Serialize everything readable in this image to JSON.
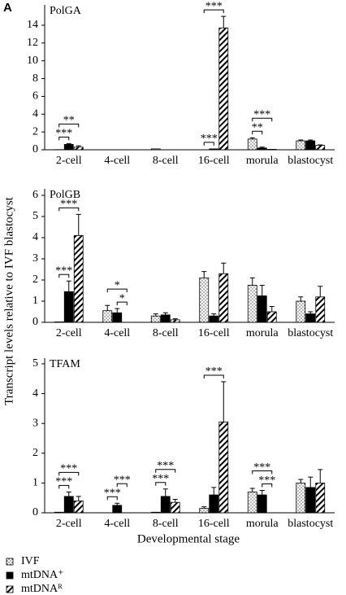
{
  "panel_label": "A",
  "y_label": "Transcript levels relative to IVF blastocyst",
  "x_label": "Developmental stage",
  "legend": [
    {
      "name": "IVF",
      "pattern": "dots"
    },
    {
      "name": "mtDNA⁺",
      "pattern": "solid"
    },
    {
      "name": "mtDNAᴿ",
      "pattern": "hatch"
    }
  ],
  "chart_data": [
    {
      "type": "bar",
      "title": "PolGA",
      "categories": [
        "2-cell",
        "4-cell",
        "8-cell",
        "16-cell",
        "morula",
        "blastocyst"
      ],
      "series": [
        {
          "values": [
            0.02,
            0,
            0.1,
            0,
            1.2,
            1.0
          ],
          "errors": [
            0,
            0,
            0,
            0,
            0.15,
            0.1
          ]
        },
        {
          "values": [
            0.6,
            0,
            0,
            0.1,
            0.2,
            1.0
          ],
          "errors": [
            0.1,
            0,
            0,
            0,
            0.1,
            0.1
          ]
        },
        {
          "values": [
            0.3,
            0,
            0,
            13.7,
            0.05,
            0.5
          ],
          "errors": [
            0.15,
            0,
            0,
            1.3,
            0,
            0.05
          ]
        }
      ],
      "ylim": [
        0,
        14
      ],
      "yticks": [
        0,
        2,
        4,
        6,
        8,
        10,
        12,
        14
      ],
      "annotations": [
        {
          "text": "***",
          "category": 0,
          "bars": [
            0,
            1
          ]
        },
        {
          "text": "**",
          "category": 0,
          "bars": [
            0,
            2
          ]
        },
        {
          "text": "***",
          "category": 3,
          "bars": [
            0,
            1
          ]
        },
        {
          "text": "***",
          "category": 3,
          "bars": [
            0,
            2
          ]
        },
        {
          "text": "**",
          "category": 4,
          "bars": [
            0,
            1
          ]
        },
        {
          "text": "***",
          "category": 4,
          "bars": [
            0,
            2
          ]
        }
      ]
    },
    {
      "type": "bar",
      "title": "PolGB",
      "categories": [
        "2-cell",
        "4-cell",
        "8-cell",
        "16-cell",
        "morula",
        "blastocyst"
      ],
      "series": [
        {
          "values": [
            0.02,
            0.55,
            0.3,
            2.1,
            1.75,
            1.0
          ],
          "errors": [
            0,
            0.25,
            0.1,
            0.3,
            0.35,
            0.2
          ]
        },
        {
          "values": [
            1.45,
            0.45,
            0.35,
            0.3,
            1.25,
            0.4
          ],
          "errors": [
            0.5,
            0.2,
            0.1,
            0.1,
            0.5,
            0.1
          ]
        },
        {
          "values": [
            4.1,
            0,
            0.12,
            2.3,
            0.5,
            1.2
          ],
          "errors": [
            1.0,
            0,
            0.05,
            0.5,
            0.25,
            0.5
          ]
        }
      ],
      "ylim": [
        0,
        6
      ],
      "yticks": [
        0,
        1,
        2,
        3,
        4,
        5,
        6
      ],
      "annotations": [
        {
          "text": "***",
          "category": 0,
          "bars": [
            0,
            1
          ]
        },
        {
          "text": "***",
          "category": 0,
          "bars": [
            0,
            2
          ]
        },
        {
          "text": "*",
          "category": 1,
          "bars": [
            1,
            2
          ]
        },
        {
          "text": "*",
          "category": 1,
          "bars": [
            0,
            2
          ]
        }
      ]
    },
    {
      "type": "bar",
      "title": "TFAM",
      "categories": [
        "2-cell",
        "4-cell",
        "8-cell",
        "16-cell",
        "morula",
        "blastocyst"
      ],
      "series": [
        {
          "values": [
            0.02,
            0,
            0.02,
            0.15,
            0.7,
            1.0
          ],
          "errors": [
            0,
            0,
            0,
            0.05,
            0.12,
            0.12
          ]
        },
        {
          "values": [
            0.55,
            0.25,
            0.55,
            0.6,
            0.6,
            0.85
          ],
          "errors": [
            0.15,
            0.07,
            0.25,
            0.25,
            0.15,
            0.35
          ]
        },
        {
          "values": [
            0.4,
            0,
            0.35,
            3.05,
            0,
            1.0
          ],
          "errors": [
            0.15,
            0,
            0.1,
            1.35,
            0,
            0.45
          ]
        }
      ],
      "ylim": [
        0,
        5
      ],
      "yticks": [
        0,
        1,
        2,
        3,
        4,
        5
      ],
      "annotations": [
        {
          "text": "***",
          "category": 0,
          "bars": [
            0,
            1
          ]
        },
        {
          "text": "***",
          "category": 0,
          "bars": [
            0,
            2
          ]
        },
        {
          "text": "***",
          "category": 1,
          "bars": [
            0,
            1
          ]
        },
        {
          "text": "***",
          "category": 1,
          "bars": [
            1,
            2
          ]
        },
        {
          "text": "***",
          "category": 2,
          "bars": [
            0,
            1
          ]
        },
        {
          "text": "***",
          "category": 2,
          "bars": [
            0,
            2
          ]
        },
        {
          "text": "***",
          "category": 3,
          "bars": [
            0,
            2
          ]
        },
        {
          "text": "***",
          "category": 4,
          "bars": [
            1,
            2
          ]
        },
        {
          "text": "***",
          "category": 4,
          "bars": [
            0,
            2
          ]
        }
      ]
    }
  ]
}
